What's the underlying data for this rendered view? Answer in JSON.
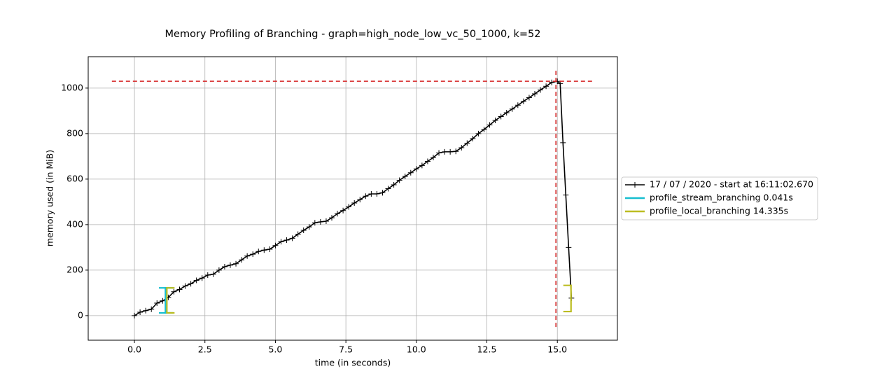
{
  "chart_data": {
    "type": "line",
    "title": "Memory Profiling of Branching - graph=high_node_low_vc_50_1000, k=52",
    "x_label": "time (in seconds)",
    "y_label": "memory used (in MiB)",
    "xlim": [
      -1.64,
      17.13
    ],
    "ylim": [
      -108,
      1138
    ],
    "xticks": [
      {
        "value": 0,
        "label": "0.0"
      },
      {
        "value": 2.5,
        "label": "2.5"
      },
      {
        "value": 5,
        "label": "5.0"
      },
      {
        "value": 7.5,
        "label": "7.5"
      },
      {
        "value": 10,
        "label": "10.0"
      },
      {
        "value": 12.5,
        "label": "12.5"
      },
      {
        "value": 15,
        "label": "15.0"
      }
    ],
    "yticks": [
      0,
      200,
      400,
      600,
      800,
      1000
    ],
    "grid": true,
    "legend": "outside right",
    "x": [
      0,
      0.2,
      0.4,
      0.6,
      0.8,
      1.0,
      1.2,
      1.4,
      1.6,
      1.8,
      2.0,
      2.2,
      2.4,
      2.6,
      2.8,
      3.0,
      3.2,
      3.4,
      3.6,
      3.8,
      4.0,
      4.2,
      4.4,
      4.6,
      4.8,
      5.0,
      5.2,
      5.4,
      5.6,
      5.8,
      6.0,
      6.2,
      6.4,
      6.6,
      6.8,
      7.0,
      7.2,
      7.4,
      7.6,
      7.8,
      8.0,
      8.2,
      8.4,
      8.6,
      8.8,
      9.0,
      9.2,
      9.4,
      9.6,
      9.8,
      10.0,
      10.2,
      10.4,
      10.6,
      10.8,
      11.0,
      11.2,
      11.4,
      11.6,
      11.8,
      12.0,
      12.2,
      12.4,
      12.6,
      12.8,
      13.0,
      13.2,
      13.4,
      13.6,
      13.8,
      14.0,
      14.2,
      14.4,
      14.6,
      14.8,
      15.0,
      15.1,
      15.2,
      15.3,
      15.4,
      15.5
    ],
    "series": [
      {
        "name": "17 / 07 / 2020 - start at 16:11:02.670",
        "color": "#000000",
        "values": [
          0,
          15,
          22,
          28,
          55,
          65,
          80,
          105,
          115,
          130,
          140,
          155,
          165,
          178,
          182,
          200,
          215,
          222,
          228,
          245,
          262,
          270,
          282,
          288,
          292,
          308,
          325,
          332,
          340,
          358,
          375,
          390,
          408,
          412,
          415,
          430,
          448,
          462,
          478,
          495,
          510,
          525,
          535,
          535,
          540,
          558,
          575,
          595,
          612,
          628,
          645,
          660,
          678,
          695,
          715,
          720,
          720,
          722,
          738,
          758,
          778,
          800,
          818,
          838,
          858,
          875,
          892,
          908,
          925,
          942,
          958,
          975,
          992,
          1008,
          1025,
          1030,
          1020,
          760,
          530,
          300,
          77
        ]
      }
    ],
    "brackets": [
      {
        "name": "profile_stream_branching 0.041s",
        "color": "#17becf",
        "x": [
          1.1,
          1.141
        ],
        "y": [
          12,
          122
        ],
        "y_end": [
          12,
          122
        ]
      },
      {
        "name": "profile_local_branching 14.335s",
        "color": "#bcbd22",
        "x": [
          1.15,
          15.485
        ],
        "y": [
          12,
          122
        ],
        "y_end": [
          18,
          133
        ]
      }
    ],
    "max_lines": {
      "color": "#d62728",
      "y": 1030,
      "y_span": [
        -0.8,
        16.3
      ],
      "x": 14.95,
      "x_span": [
        -50,
        1086
      ]
    }
  }
}
